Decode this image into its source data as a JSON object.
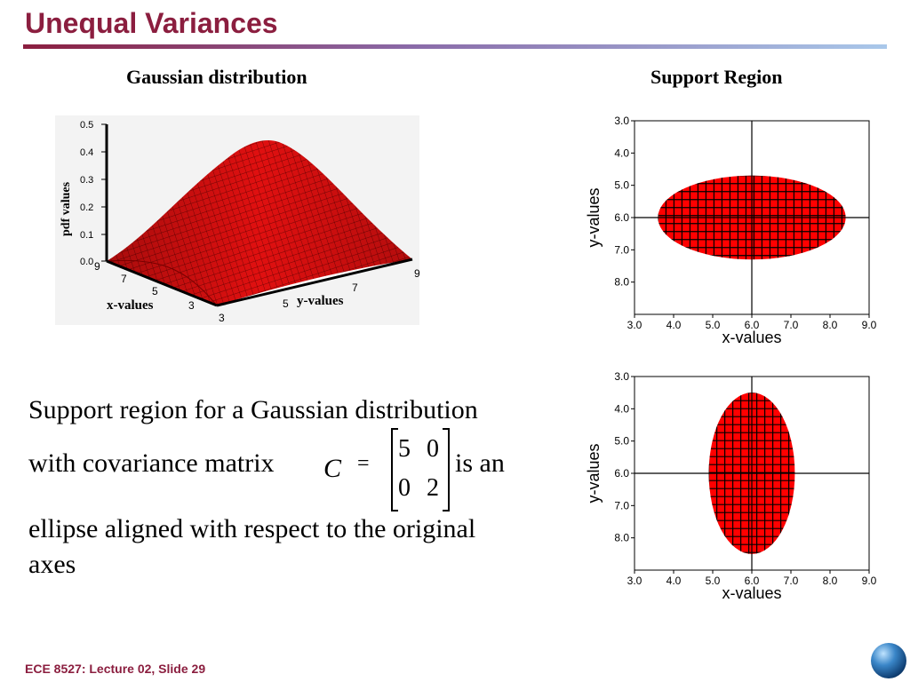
{
  "slide": {
    "title": "Unequal Variances",
    "footer": "ECE 8527: Lecture 02, Slide 29"
  },
  "left_panel": {
    "heading": "Gaussian distribution",
    "z_label": "pdf values",
    "x_label": "x-values",
    "y_label": "y-values",
    "z_ticks": [
      "0.5",
      "0.4",
      "0.3",
      "0.2",
      "0.1",
      "0.0"
    ],
    "x_ticks": [
      "9",
      "7",
      "5",
      "3"
    ],
    "y_ticks": [
      "3",
      "5",
      "7",
      "9"
    ]
  },
  "right_panel": {
    "heading": "Support Region"
  },
  "body_text": {
    "line1": "Support region for a Gaussian distribution",
    "line2_before": "with covariance matrix",
    "symbol_c": "C",
    "equals": "=",
    "line2_after": "is an",
    "line3": "ellipse aligned with respect to the original",
    "line4": "axes",
    "matrix": [
      "5",
      "0",
      "0",
      "2"
    ]
  },
  "chart_data": [
    {
      "type": "scatter",
      "title": "Support Region",
      "xlabel": "x-values",
      "ylabel": "y-values",
      "xlim": [
        3.0,
        9.0
      ],
      "ylim": [
        3.0,
        9.0
      ],
      "y_inverted": true,
      "x_ticks": [
        "3.0",
        "4.0",
        "5.0",
        "6.0",
        "7.0",
        "8.0",
        "9.0"
      ],
      "y_ticks": [
        "3.0",
        "4.0",
        "5.0",
        "6.0",
        "7.0",
        "8.0"
      ],
      "ellipse": {
        "center": [
          6.0,
          6.0
        ],
        "x_radius": 2.4,
        "y_radius": 1.3
      },
      "fill_color": "#ff0000"
    },
    {
      "type": "scatter",
      "title": "",
      "xlabel": "x-values",
      "ylabel": "y-values",
      "xlim": [
        3.0,
        9.0
      ],
      "ylim": [
        3.0,
        9.0
      ],
      "y_inverted": true,
      "x_ticks": [
        "3.0",
        "4.0",
        "5.0",
        "6.0",
        "7.0",
        "8.0",
        "9.0"
      ],
      "y_ticks": [
        "3.0",
        "4.0",
        "5.0",
        "6.0",
        "7.0",
        "8.0"
      ],
      "ellipse": {
        "center": [
          6.0,
          6.0
        ],
        "x_radius": 1.1,
        "y_radius": 2.5
      },
      "fill_color": "#ff0000"
    }
  ]
}
